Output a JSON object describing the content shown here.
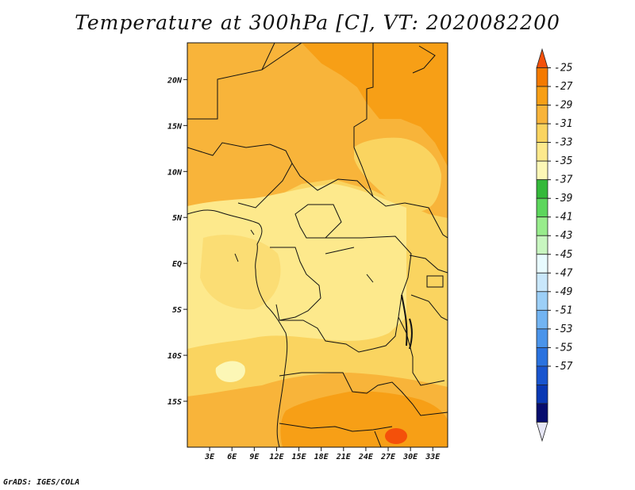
{
  "title": "Temperature at 300hPa [C], VT: 2020082200",
  "credit": "GrADS: IGES/COLA",
  "map": {
    "lon_range": [
      0,
      35
    ],
    "lat_range": [
      -20,
      24
    ],
    "x_ticks": [
      {
        "lon": 3,
        "label": "3E"
      },
      {
        "lon": 6,
        "label": "6E"
      },
      {
        "lon": 9,
        "label": "9E"
      },
      {
        "lon": 12,
        "label": "12E"
      },
      {
        "lon": 15,
        "label": "15E"
      },
      {
        "lon": 18,
        "label": "18E"
      },
      {
        "lon": 21,
        "label": "21E"
      },
      {
        "lon": 24,
        "label": "24E"
      },
      {
        "lon": 27,
        "label": "27E"
      },
      {
        "lon": 30,
        "label": "30E"
      },
      {
        "lon": 33,
        "label": "33E"
      }
    ],
    "y_ticks": [
      {
        "lat": 20,
        "label": "20N"
      },
      {
        "lat": 15,
        "label": "15N"
      },
      {
        "lat": 10,
        "label": "10N"
      },
      {
        "lat": 5,
        "label": "5N"
      },
      {
        "lat": 0,
        "label": "EQ"
      },
      {
        "lat": -5,
        "label": "5S"
      },
      {
        "lat": -10,
        "label": "10S"
      },
      {
        "lat": -15,
        "label": "15S"
      }
    ]
  },
  "colorbar": {
    "labels": [
      "-25",
      "-27",
      "-29",
      "-31",
      "-33",
      "-35",
      "-37",
      "-39",
      "-41",
      "-43",
      "-45",
      "-47",
      "-49",
      "-51",
      "-53",
      "-55",
      "-57"
    ],
    "colors": [
      "#f4500a",
      "#f47a00",
      "#f79f16",
      "#f8b43a",
      "#fad460",
      "#fde98c",
      "#fcf7b6",
      "#34b93a",
      "#5cd65c",
      "#98ec8c",
      "#c8f6c0",
      "#e8fbff",
      "#c9e7fb",
      "#9ccff7",
      "#72b4f2",
      "#4a94ea",
      "#2a72df",
      "#1955cf",
      "#0a38b4",
      "#070d6e",
      "#e6e6f5"
    ]
  },
  "fill_colors": {
    "t25": "#f4500a",
    "t27": "#f79f16",
    "t29": "#f8b43a",
    "t31": "#fad460",
    "t33": "#fde98c",
    "t35": "#fcf7b6"
  }
}
